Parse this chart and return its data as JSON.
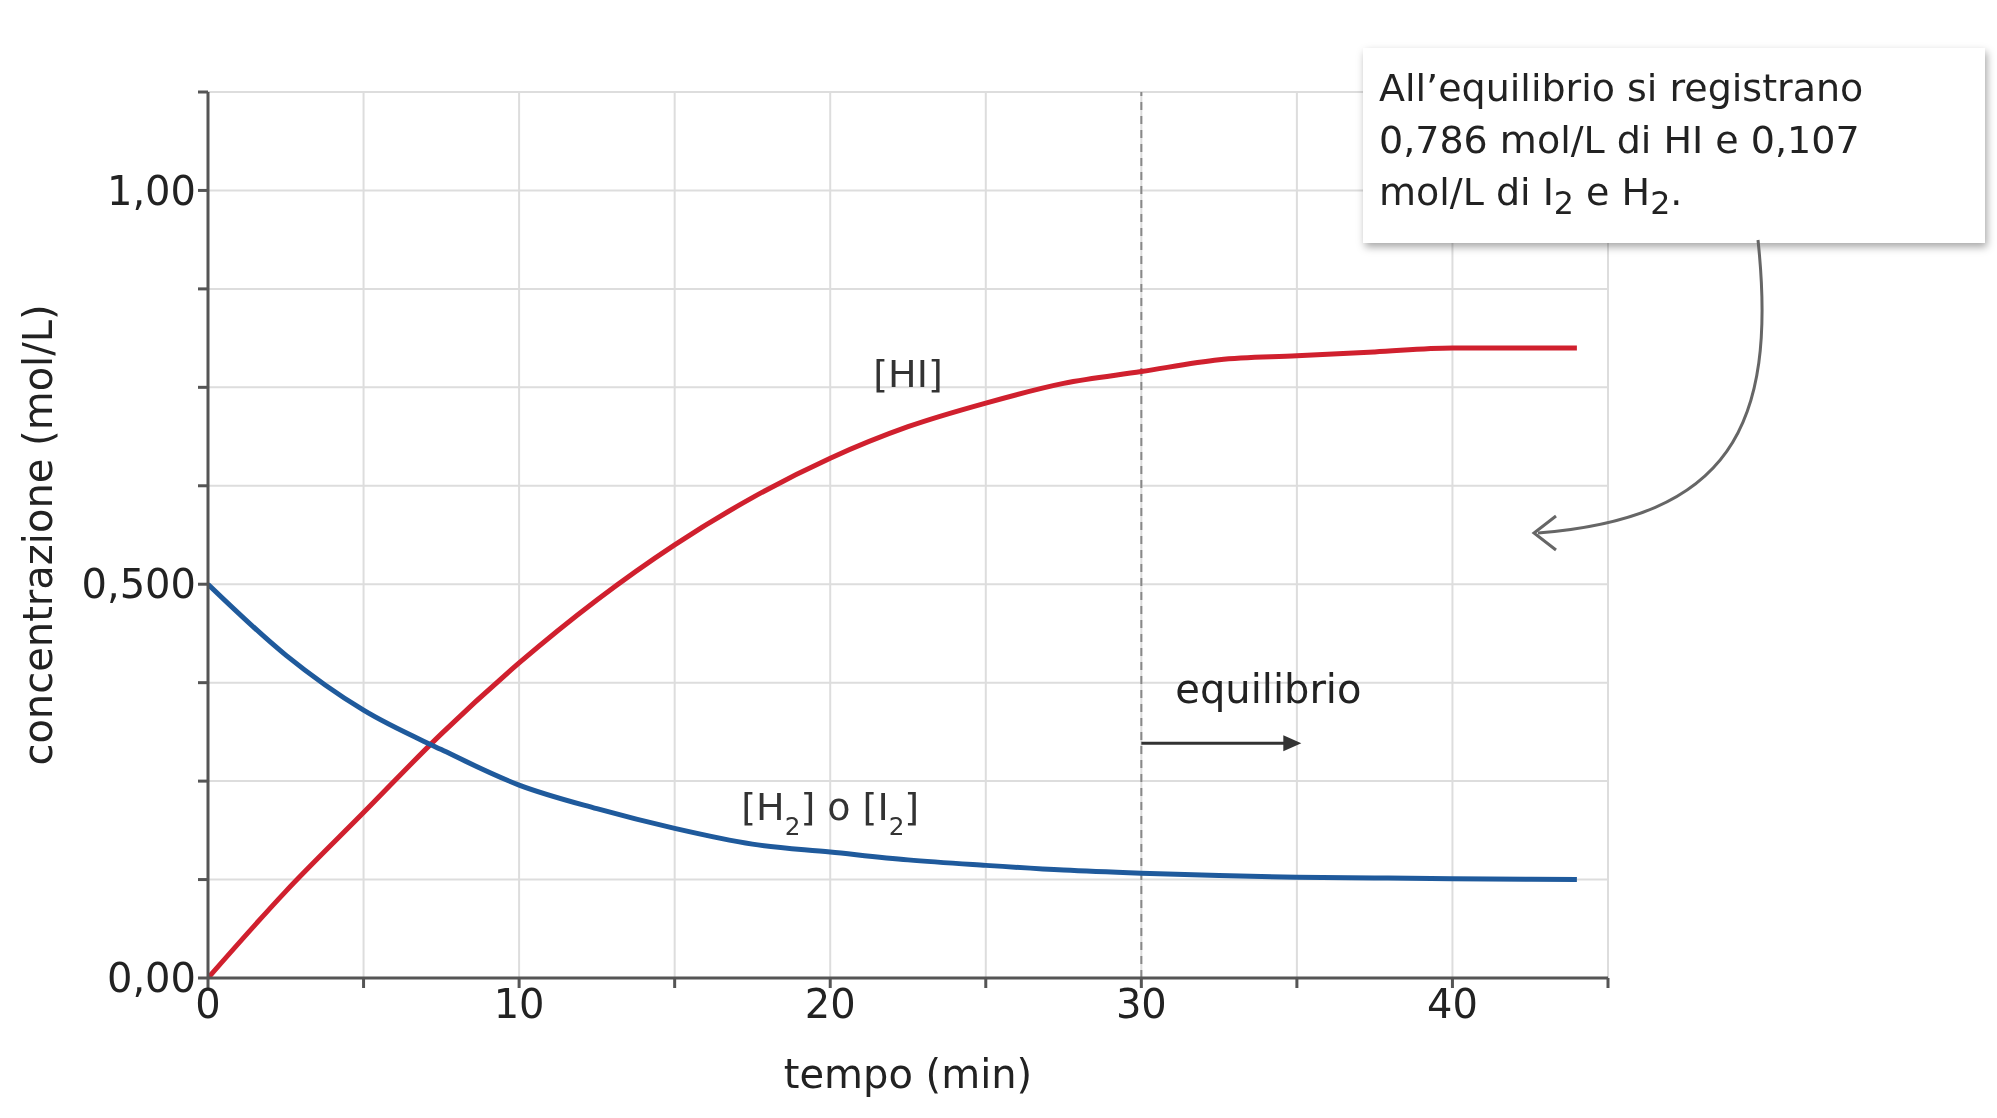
{
  "chart_data": {
    "type": "line",
    "xlabel": "tempo (min)",
    "ylabel": "concentrazione (mol/L)",
    "x": [
      0,
      2.5,
      5,
      7.5,
      10,
      12.5,
      15,
      17.5,
      20,
      22.5,
      25,
      27.5,
      30,
      32.5,
      35,
      37.5,
      40,
      44
    ],
    "series": [
      {
        "name": "[HI]",
        "color": "#d0202e",
        "values": [
          0,
          0.11,
          0.21,
          0.31,
          0.4,
          0.48,
          0.55,
          0.61,
          0.66,
          0.7,
          0.73,
          0.755,
          0.77,
          0.785,
          0.79,
          0.795,
          0.8,
          0.8
        ]
      },
      {
        "name": "[H$_{2}$] o [I$_{2}$]",
        "color": "#1f5a9c",
        "values": [
          0.5,
          0.41,
          0.34,
          0.29,
          0.245,
          0.215,
          0.19,
          0.17,
          0.16,
          0.15,
          0.143,
          0.137,
          0.133,
          0.13,
          0.128,
          0.127,
          0.126,
          0.125
        ]
      }
    ],
    "xlim": [
      0,
      45
    ],
    "xticks": [
      0,
      {
        "value": 5,
        "label": null
      },
      10,
      {
        "value": 15,
        "label": null
      },
      20,
      {
        "value": 25,
        "label": null
      },
      30,
      {
        "value": 35,
        "label": null
      },
      40,
      {
        "value": 45,
        "label": null
      }
    ],
    "ylim": [
      0,
      1.125
    ],
    "yticks": [
      {
        "value": 0,
        "label": "0,00"
      },
      {
        "value": 0.125,
        "label": null
      },
      {
        "value": 0.25,
        "label": null
      },
      {
        "value": 0.375,
        "label": null
      },
      {
        "value": 0.5,
        "label": "0,500"
      },
      {
        "value": 0.625,
        "label": null
      },
      {
        "value": 0.75,
        "label": null
      },
      {
        "value": 0.875,
        "label": null
      },
      {
        "value": 1,
        "label": "1,00"
      },
      {
        "value": 1.125,
        "label": null
      }
    ],
    "ref_lines": [
      {
        "axis": "x",
        "value": 30,
        "label": "equilibrio",
        "color": "#888888",
        "line_style": "dashed"
      }
    ],
    "annotations": [
      "All’equilibrio si registrano 0,786 mol/L di HI e 0,107 mol/L di I$_{2}$ e H$_{2}$."
    ],
    "grid": true,
    "marker": "none",
    "line_style": "solid"
  }
}
